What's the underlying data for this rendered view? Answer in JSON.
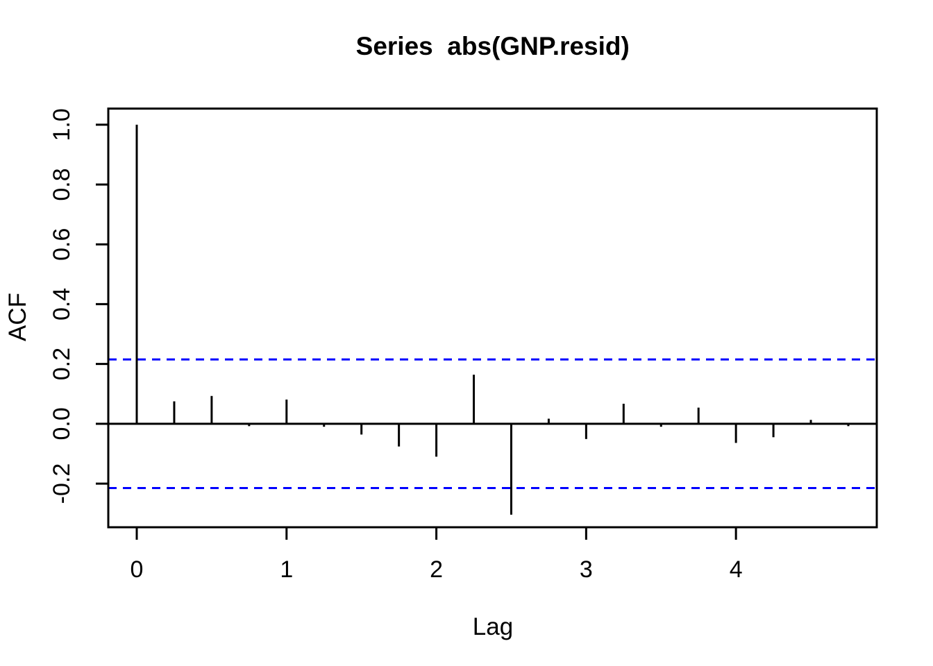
{
  "chart_data": {
    "type": "bar",
    "subtype": "acf-stem-plot",
    "title": "Series  abs(GNP.resid)",
    "xlabel": "Lag",
    "ylabel": "ACF",
    "x": [
      0,
      0.25,
      0.5,
      0.75,
      1.0,
      1.25,
      1.5,
      1.75,
      2.0,
      2.25,
      2.5,
      2.75,
      3.0,
      3.25,
      3.5,
      3.75,
      4.0,
      4.25,
      4.5,
      4.75
    ],
    "values": [
      1.0,
      0.075,
      0.093,
      -0.008,
      0.081,
      -0.01,
      -0.036,
      -0.076,
      -0.11,
      0.164,
      -0.304,
      0.017,
      -0.051,
      0.067,
      -0.01,
      0.054,
      -0.064,
      -0.045,
      0.013,
      -0.008
    ],
    "confidence_bound": 0.215,
    "confidence_bound_negative": -0.215,
    "xticks": [
      0,
      1,
      2,
      3,
      4
    ],
    "yticks": [
      -0.2,
      0.0,
      0.2,
      0.4,
      0.6,
      0.8,
      1.0
    ],
    "ytick_labels": [
      "-0.2",
      "0.0",
      "0.2",
      "0.4",
      "0.6",
      "0.8",
      "1.0"
    ],
    "xtick_labels": [
      "0",
      "1",
      "2",
      "3",
      "4"
    ],
    "xlim": [
      -0.19,
      4.94
    ],
    "ylim": [
      -0.346,
      1.054
    ],
    "grid": false,
    "legend": null,
    "colors": {
      "spike": "#000000",
      "zero_line": "#000000",
      "confidence_line": "#0000FF",
      "frame": "#000000",
      "background": "#FFFFFF",
      "text": "#000000"
    }
  }
}
